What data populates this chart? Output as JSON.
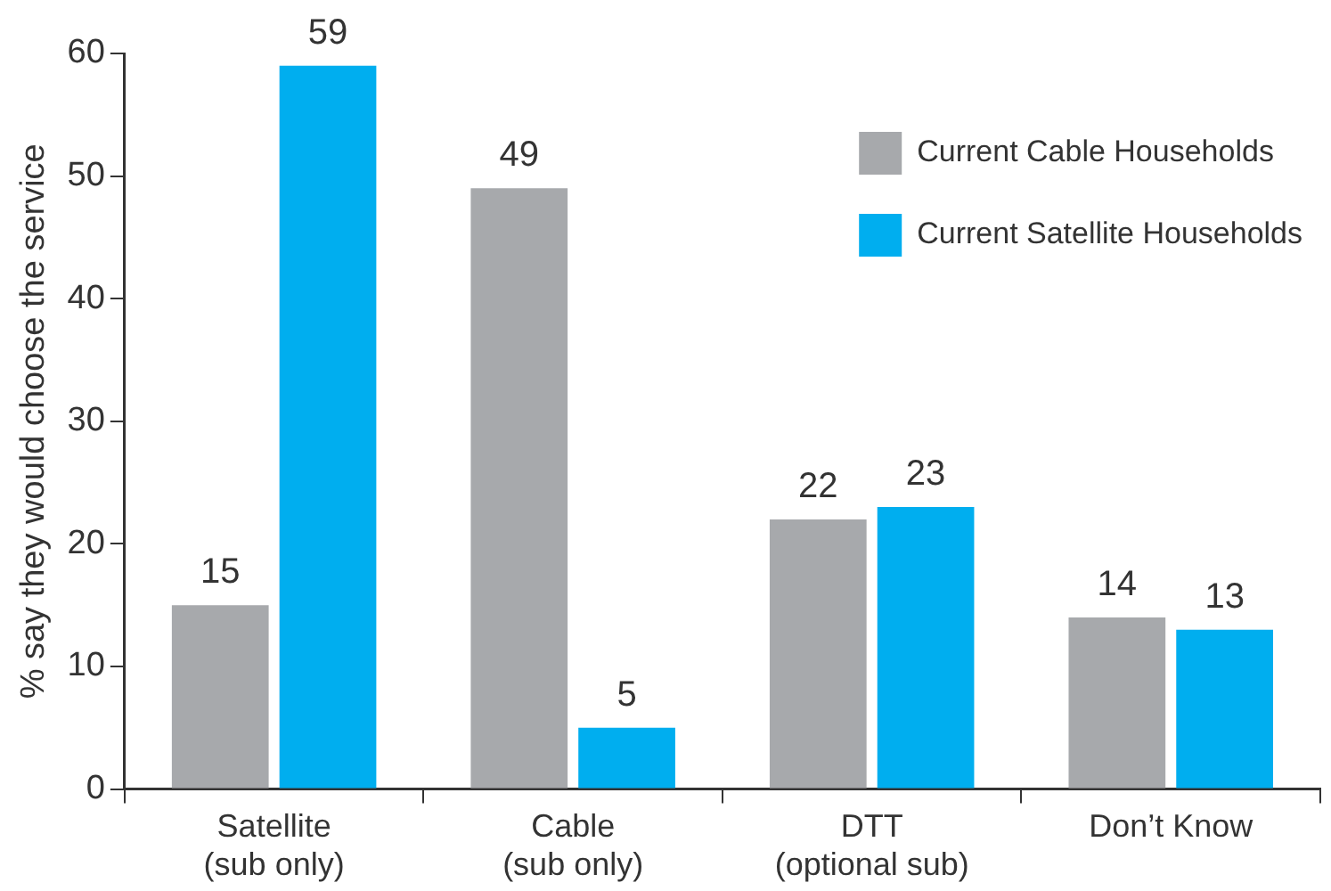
{
  "chart_data": {
    "type": "bar",
    "ylabel": "% say they would choose the service",
    "categories": [
      "Satellite\n(sub only)",
      "Cable\n(sub only)",
      "DTT\n(optional sub)",
      "Don’t Know"
    ],
    "series": [
      {
        "name": "Current Cable Households",
        "color": "#a7a9ac",
        "values": [
          15,
          49,
          22,
          14
        ]
      },
      {
        "name": "Current Satellite Households",
        "color": "#00aeef",
        "values": [
          59,
          5,
          23,
          13
        ]
      }
    ],
    "ylim": [
      0,
      60
    ],
    "yticks": [
      0,
      10,
      20,
      30,
      40,
      50,
      60
    ],
    "grid": false,
    "legend": "top right",
    "data_labels": true
  }
}
